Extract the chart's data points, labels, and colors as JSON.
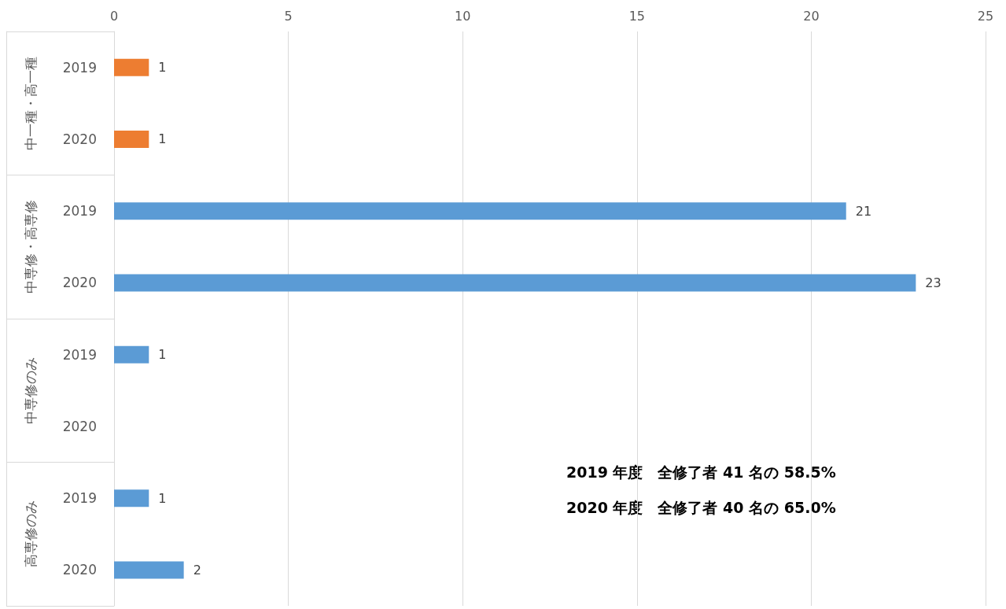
{
  "chart_data": {
    "type": "bar",
    "orientation": "horizontal",
    "categories": [
      "2019",
      "2020",
      "2019",
      "2020",
      "2019",
      "2020",
      "2019",
      "2020"
    ],
    "values": [
      1,
      1,
      21,
      23,
      1,
      null,
      1,
      2
    ],
    "colors": [
      "#ed7d31",
      "#ed7d31",
      "#5b9bd5",
      "#5b9bd5",
      "#5b9bd5",
      "#5b9bd5",
      "#5b9bd5",
      "#5b9bd5"
    ],
    "xlim": [
      0,
      25
    ],
    "xticks": [
      0,
      5,
      10,
      15,
      20,
      25
    ],
    "grid": "x",
    "data_labels": true,
    "annotations": [
      "中一種・高一種",
      "中専修・高専修",
      "中専修のみ",
      "高専修のみ",
      "2019 年度　全修了者 41 名の 58.5%",
      "2020 年度　全修了者 40 名の 65.0%"
    ]
  }
}
